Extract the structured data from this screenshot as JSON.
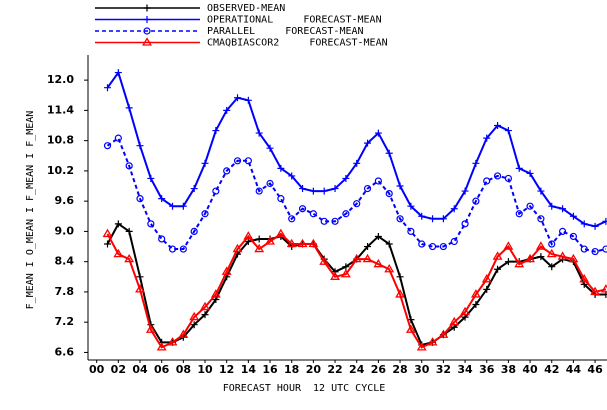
{
  "chart_data": {
    "type": "line",
    "x_label": "FORECAST HOUR  12 UTC CYCLE",
    "y_label": "F_MEAN I O_MEAN I F_MEAN I F_MEAN",
    "x": [
      1,
      2,
      3,
      4,
      5,
      6,
      7,
      8,
      9,
      10,
      11,
      12,
      13,
      14,
      15,
      16,
      17,
      18,
      19,
      20,
      21,
      22,
      23,
      24,
      25,
      26,
      27,
      28,
      29,
      30,
      31,
      32,
      33,
      34,
      35,
      36,
      37,
      38,
      39,
      40,
      41,
      42,
      43,
      44,
      45,
      46,
      47
    ],
    "series": [
      {
        "name": "OBSERVED-MEAN",
        "color": "#000000",
        "marker": "plus",
        "dashed": false,
        "values": [
          8.75,
          9.15,
          9.0,
          8.1,
          7.15,
          6.8,
          6.8,
          6.9,
          7.15,
          7.35,
          7.65,
          8.1,
          8.55,
          8.8,
          8.85,
          8.85,
          8.9,
          8.7,
          8.75,
          8.75,
          8.45,
          8.2,
          8.3,
          8.45,
          8.7,
          8.9,
          8.75,
          8.1,
          7.25,
          6.75,
          6.8,
          6.95,
          7.1,
          7.3,
          7.55,
          7.85,
          8.25,
          8.4,
          8.4,
          8.45,
          8.5,
          8.3,
          8.45,
          8.4,
          7.95,
          7.75,
          7.75
        ]
      },
      {
        "name": "OPERATIONAL     FORECAST-MEAN",
        "color": "#0000ff",
        "marker": "plus",
        "dashed": false,
        "values": [
          11.85,
          12.15,
          11.45,
          10.7,
          10.05,
          9.65,
          9.5,
          9.5,
          9.85,
          10.35,
          11.0,
          11.4,
          11.65,
          11.6,
          10.95,
          10.65,
          10.25,
          10.1,
          9.85,
          9.8,
          9.8,
          9.85,
          10.05,
          10.35,
          10.75,
          10.95,
          10.55,
          9.9,
          9.5,
          9.3,
          9.25,
          9.25,
          9.45,
          9.8,
          10.35,
          10.85,
          11.1,
          11.0,
          10.25,
          10.15,
          9.8,
          9.5,
          9.45,
          9.3,
          9.15,
          9.1,
          9.2
        ]
      },
      {
        "name": "PARALLEL     FORECAST-MEAN",
        "color": "#0000ff",
        "marker": "circle",
        "dashed": true,
        "values": [
          10.7,
          10.85,
          10.3,
          9.65,
          9.15,
          8.85,
          8.65,
          8.65,
          9.0,
          9.35,
          9.8,
          10.2,
          10.4,
          10.4,
          9.8,
          9.95,
          9.65,
          9.25,
          9.45,
          9.35,
          9.2,
          9.2,
          9.35,
          9.55,
          9.85,
          10.0,
          9.75,
          9.25,
          9.0,
          8.75,
          8.7,
          8.7,
          8.8,
          9.15,
          9.6,
          10.0,
          10.1,
          10.05,
          9.35,
          9.5,
          9.25,
          8.75,
          9.0,
          8.9,
          8.65,
          8.6,
          8.65
        ]
      },
      {
        "name": "CMAQBIASCOR2     FORECAST-MEAN",
        "color": "#ff0000",
        "marker": "triangle",
        "dashed": false,
        "values": [
          8.95,
          8.55,
          8.45,
          7.85,
          7.05,
          6.7,
          6.8,
          6.95,
          7.3,
          7.5,
          7.75,
          8.2,
          8.65,
          8.9,
          8.65,
          8.8,
          8.95,
          8.75,
          8.75,
          8.75,
          8.4,
          8.1,
          8.15,
          8.45,
          8.45,
          8.35,
          8.25,
          7.75,
          7.05,
          6.7,
          6.8,
          6.95,
          7.2,
          7.4,
          7.75,
          8.05,
          8.5,
          8.7,
          8.35,
          8.45,
          8.7,
          8.55,
          8.5,
          8.45,
          8.05,
          7.8,
          7.85
        ]
      }
    ],
    "xlim": [
      -0.8,
      47.1
    ],
    "ylim": [
      6.45,
      12.3
    ],
    "xticks": [
      {
        "value": 0,
        "label": "00"
      },
      {
        "value": 2,
        "label": "02"
      },
      {
        "value": 4,
        "label": "04"
      },
      {
        "value": 6,
        "label": "06"
      },
      {
        "value": 8,
        "label": "08"
      },
      10,
      12,
      14,
      16,
      18,
      20,
      22,
      24,
      26,
      28,
      30,
      32,
      34,
      36,
      38,
      40,
      42,
      44,
      46
    ],
    "yticks": [
      6.6,
      7.2,
      7.8,
      8.4,
      {
        "value": 9,
        "label": "9.0"
      },
      9.6,
      10.2,
      10.8,
      11.4,
      {
        "value": 12,
        "label": "12.0"
      }
    ]
  }
}
